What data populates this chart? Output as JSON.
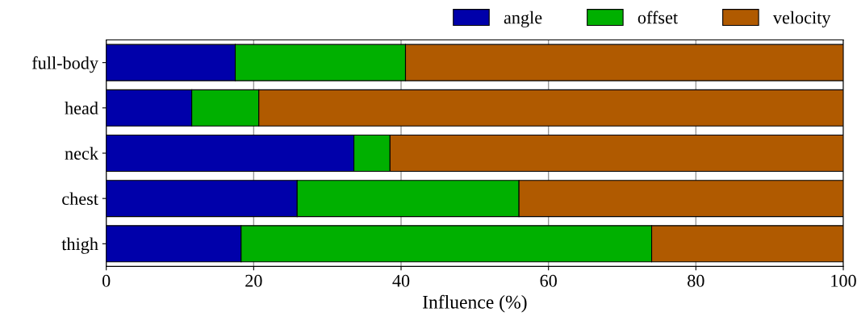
{
  "chart_data": {
    "type": "bar",
    "orientation": "horizontal",
    "stacked": true,
    "xlabel": "Influence (%)",
    "categories": [
      "full-body",
      "head",
      "neck",
      "chest",
      "thigh"
    ],
    "series": [
      {
        "name": "angle",
        "color": "#0000aa",
        "values": [
          17.5,
          11.6,
          33.6,
          25.9,
          18.3
        ]
      },
      {
        "name": "offset",
        "color": "#00b000",
        "values": [
          23.1,
          9.1,
          4.9,
          30.1,
          55.7
        ]
      },
      {
        "name": "velocity",
        "color": "#b05a00",
        "values": [
          59.4,
          79.3,
          61.5,
          44.0,
          26.0
        ]
      }
    ],
    "xlim": [
      0,
      100
    ],
    "xticks": [
      0,
      20,
      40,
      60,
      80,
      100
    ],
    "grid": "x",
    "legend": "top right"
  }
}
